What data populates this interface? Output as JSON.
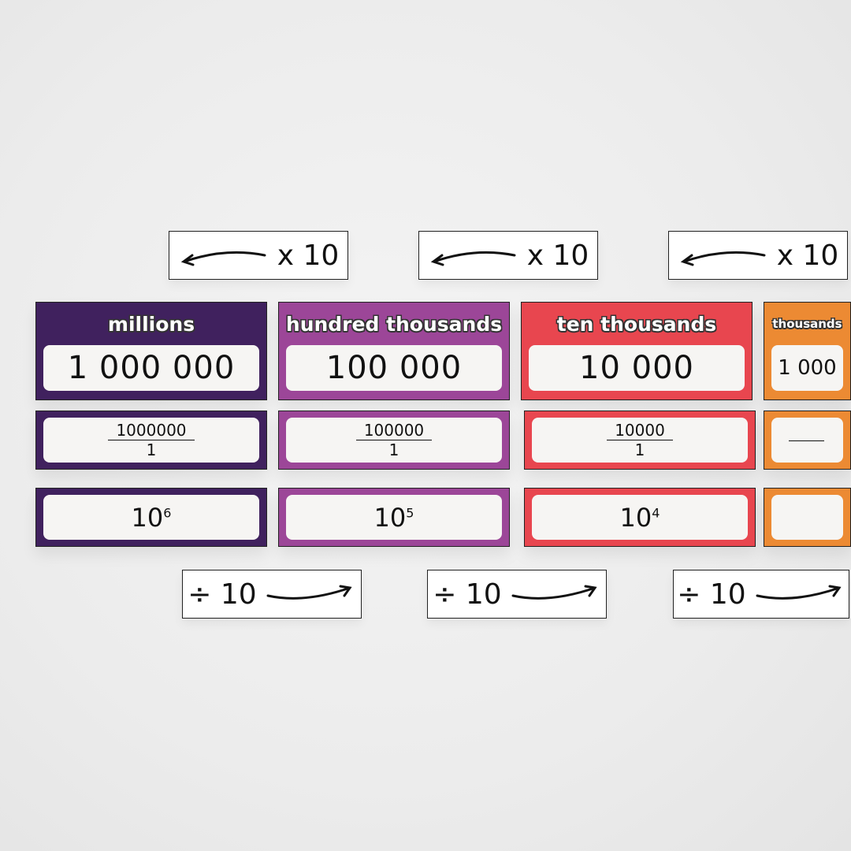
{
  "colors": {
    "millions": "#40215e",
    "hundred_thousands": "#9c4698",
    "ten_thousands": "#e8464f",
    "thousands": "#ec8a33"
  },
  "multiply_label": "x 10",
  "divide_label": "÷ 10",
  "columns": [
    {
      "title": "millions",
      "value": "1 000 000",
      "numerator": "1000000",
      "denominator": "1",
      "base": "10",
      "exponent": "6"
    },
    {
      "title": "hundred thousands",
      "value": "100 000",
      "numerator": "100000",
      "denominator": "1",
      "base": "10",
      "exponent": "5"
    },
    {
      "title": "ten thousands",
      "value": "10 000",
      "numerator": "10000",
      "denominator": "1",
      "base": "10",
      "exponent": "4"
    },
    {
      "title": "thousands",
      "value": "1 000"
    }
  ]
}
